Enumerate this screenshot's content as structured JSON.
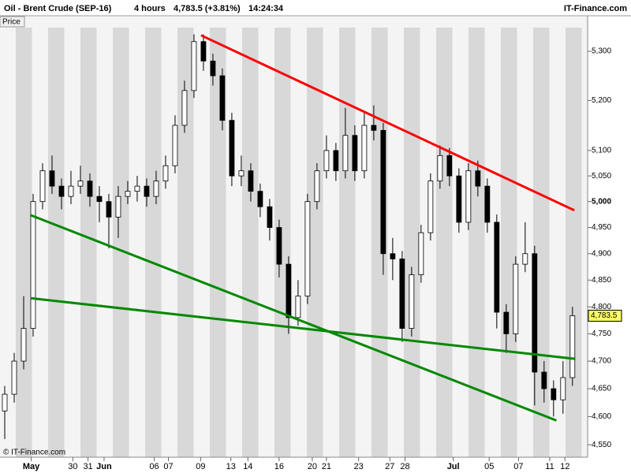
{
  "header": {
    "title": "Oil - Brent Crude (SEP-16)",
    "period": "4 hours",
    "price": "4,783.5 (+3.81%)",
    "time": "14:24:34",
    "brand": "IT-Finance.com",
    "panel": "Price",
    "copyright": "© IT-Finance.com"
  },
  "chart_data": {
    "type": "candlestick",
    "log_scale": true,
    "grid": false,
    "up_color": "#ffffff",
    "down_color": "#000000",
    "outline_color": "#000000",
    "x": [
      0,
      1,
      2,
      3,
      4,
      5,
      6,
      7,
      8,
      9,
      10,
      11,
      12,
      13,
      14,
      15,
      16,
      17,
      18,
      19,
      20,
      21,
      22,
      23,
      24,
      25,
      26,
      27,
      28,
      29,
      30,
      31,
      32,
      33,
      34,
      35,
      36,
      37,
      38,
      39,
      40,
      41,
      42,
      43,
      44,
      45,
      46,
      47,
      48,
      49,
      50,
      51,
      52,
      53,
      54,
      55,
      56,
      57,
      58,
      59,
      60
    ],
    "open": [
      4610,
      4640,
      4700,
      4760,
      5000,
      5060,
      5030,
      5010,
      5030,
      5040,
      5010,
      5000,
      4970,
      5010,
      5020,
      5030,
      5010,
      5040,
      5070,
      5150,
      5220,
      5320,
      5280,
      5250,
      5160,
      5050,
      5060,
      5020,
      4990,
      4950,
      4880,
      4780,
      4820,
      5000,
      5060,
      5100,
      5060,
      5130,
      5060,
      5150,
      5140,
      4900,
      4890,
      4760,
      4860,
      4940,
      5040,
      5090,
      5050,
      4960,
      5060,
      5030,
      4960,
      4790,
      4750,
      4880,
      4900,
      4680,
      4650,
      4630,
      4670
    ],
    "high": [
      4655,
      4715,
      4820,
      5015,
      5075,
      5090,
      5045,
      5060,
      5070,
      5055,
      5030,
      5015,
      5030,
      5040,
      5050,
      5045,
      5060,
      5090,
      5170,
      5240,
      5335,
      5335,
      5295,
      5265,
      5175,
      5090,
      5075,
      5035,
      5005,
      4965,
      4895,
      4850,
      5015,
      5075,
      5130,
      5115,
      5185,
      5150,
      5175,
      5190,
      5155,
      4930,
      4905,
      4875,
      4955,
      5055,
      5110,
      5105,
      5065,
      5075,
      5080,
      5045,
      4975,
      4805,
      4895,
      4960,
      4915,
      4700,
      4665,
      4700,
      4800
    ],
    "low": [
      4560,
      4625,
      4685,
      4745,
      4985,
      5015,
      4985,
      4995,
      5015,
      4990,
      4960,
      4910,
      4930,
      4995,
      5000,
      4990,
      4995,
      5025,
      5055,
      5135,
      5205,
      5260,
      5230,
      5140,
      5030,
      5030,
      5000,
      4970,
      4925,
      4855,
      4750,
      4765,
      4805,
      4985,
      5045,
      5040,
      5045,
      5040,
      5045,
      5120,
      4860,
      4850,
      4735,
      4745,
      4845,
      4925,
      5025,
      5030,
      4940,
      4945,
      5010,
      4940,
      4760,
      4715,
      4735,
      4865,
      4620,
      4625,
      4600,
      4605,
      4655
    ],
    "close": [
      4640,
      4700,
      4760,
      5000,
      5060,
      5030,
      5010,
      5030,
      5040,
      5010,
      5000,
      4970,
      5010,
      5020,
      5030,
      5010,
      5040,
      5070,
      5150,
      5220,
      5320,
      5280,
      5250,
      5160,
      5050,
      5060,
      5020,
      4990,
      4950,
      4880,
      4780,
      4820,
      5000,
      5060,
      5100,
      5060,
      5130,
      5060,
      5150,
      5140,
      4900,
      4890,
      4760,
      4860,
      4940,
      5040,
      5090,
      5050,
      4960,
      5060,
      5030,
      4960,
      4790,
      4750,
      4880,
      4900,
      4680,
      4650,
      4630,
      4670,
      4783.5
    ],
    "xlim": [
      -0.5,
      61.6
    ],
    "xticks": [
      {
        "value": 2.8,
        "label": "May"
      },
      {
        "value": 7.2,
        "label": "30"
      },
      {
        "value": 8.8,
        "label": "31"
      },
      {
        "value": 10.5,
        "label": "Jun"
      },
      {
        "value": 15.8,
        "label": "06"
      },
      {
        "value": 17.3,
        "label": "07"
      },
      {
        "value": 20.7,
        "label": "09"
      },
      {
        "value": 23.9,
        "label": "13"
      },
      {
        "value": 25.7,
        "label": "14"
      },
      {
        "value": 29,
        "label": "16"
      },
      {
        "value": 32.5,
        "label": "20"
      },
      {
        "value": 34,
        "label": "21"
      },
      {
        "value": 37.4,
        "label": "23"
      },
      {
        "value": 40.7,
        "label": "27"
      },
      {
        "value": 42.3,
        "label": "28"
      },
      {
        "value": 47.4,
        "label": "Jul"
      },
      {
        "value": 51.2,
        "label": "05"
      },
      {
        "value": 54.3,
        "label": "07"
      },
      {
        "value": 57.6,
        "label": "11"
      },
      {
        "value": 59.2,
        "label": "12"
      }
    ],
    "ylim": [
      4528,
      5349
    ],
    "yticks": [
      {
        "value": 4550,
        "label": "4,550"
      },
      {
        "value": 4600,
        "label": "4,600"
      },
      {
        "value": 4650,
        "label": "4,650"
      },
      {
        "value": 4700,
        "label": "4,700"
      },
      {
        "value": 4750,
        "label": "4,750"
      },
      {
        "value": 4800,
        "label": "4,800"
      },
      {
        "value": 4850,
        "label": "4,850"
      },
      {
        "value": 4900,
        "label": "4,900"
      },
      {
        "value": 4950,
        "label": "4,950"
      },
      {
        "value": 5000,
        "label": "5,000",
        "bold": true
      },
      {
        "value": 5050,
        "label": "5,050"
      },
      {
        "value": 5100,
        "label": "5,100"
      },
      {
        "value": 5200,
        "label": "5,200"
      },
      {
        "value": 5300,
        "label": "5,300"
      }
    ],
    "last_price": {
      "value": 4783.5,
      "label": "4,783.5",
      "color": "#ffff66"
    },
    "trendlines": [
      {
        "color": "#ff0000",
        "x": [
          20.75,
          60.2
        ],
        "y": [
          5333,
          4983
        ]
      },
      {
        "color": "#008800",
        "x": [
          2.7,
          58.3
        ],
        "y": [
          4974,
          4593
        ]
      },
      {
        "color": "#008800",
        "x": [
          2.8,
          60.3
        ],
        "y": [
          4816,
          4704
        ]
      }
    ]
  }
}
